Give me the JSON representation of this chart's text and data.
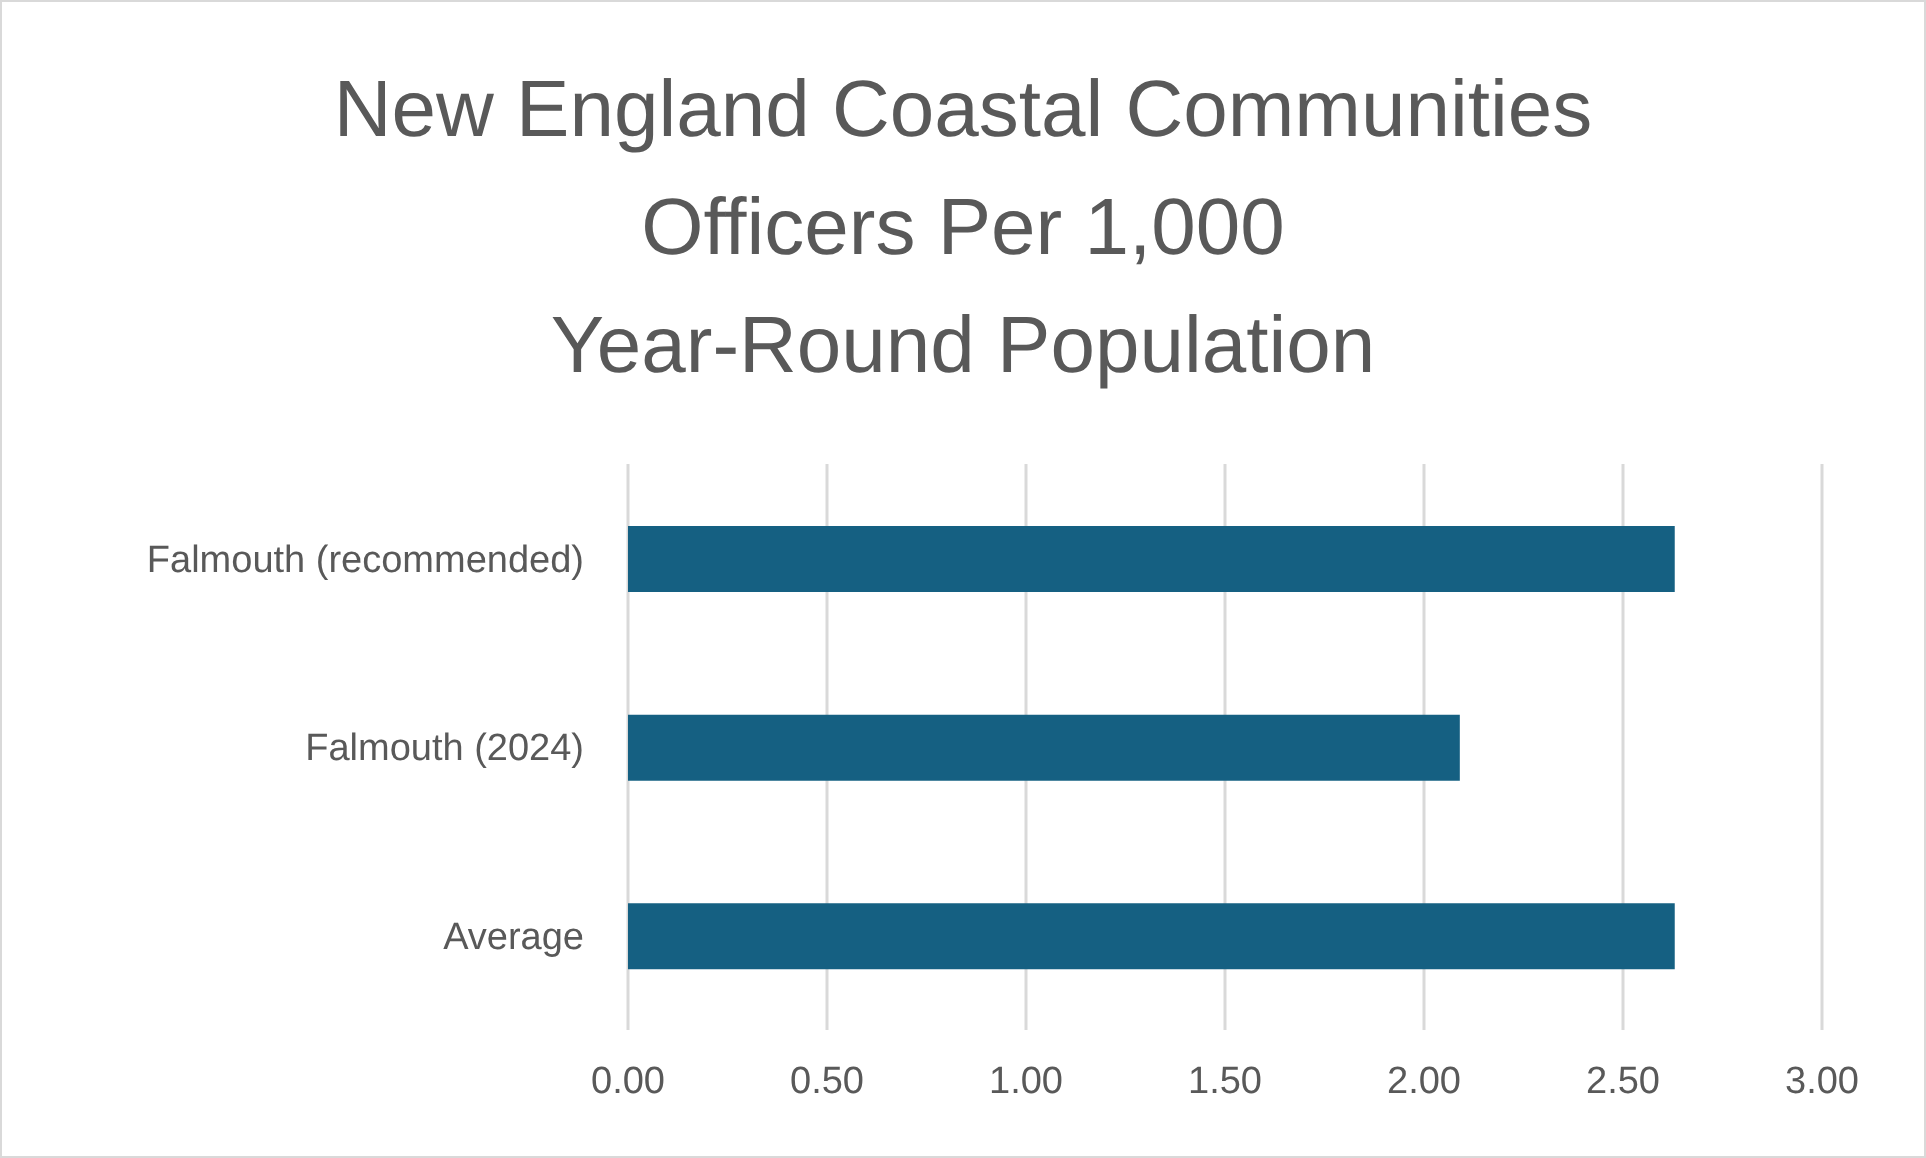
{
  "chart_data": {
    "type": "bar",
    "orientation": "horizontal",
    "title": "New England Coastal Communities\nOfficers Per 1,000\nYear-Round Population",
    "categories": [
      "Falmouth (recommended)",
      "Falmouth (2024)",
      "Average"
    ],
    "values": [
      2.63,
      2.09,
      2.63
    ],
    "color": "#156082",
    "xlim": [
      0,
      3
    ],
    "xticks": [
      {
        "value": 0,
        "label": "0.00"
      },
      {
        "value": 0.5,
        "label": "0.50"
      },
      {
        "value": 1,
        "label": "1.00"
      },
      {
        "value": 1.5,
        "label": "1.50"
      },
      {
        "value": 2,
        "label": "2.00"
      },
      {
        "value": 2.5,
        "label": "2.50"
      },
      {
        "value": 3,
        "label": "3.00"
      }
    ],
    "grid": "x",
    "legend": false
  }
}
